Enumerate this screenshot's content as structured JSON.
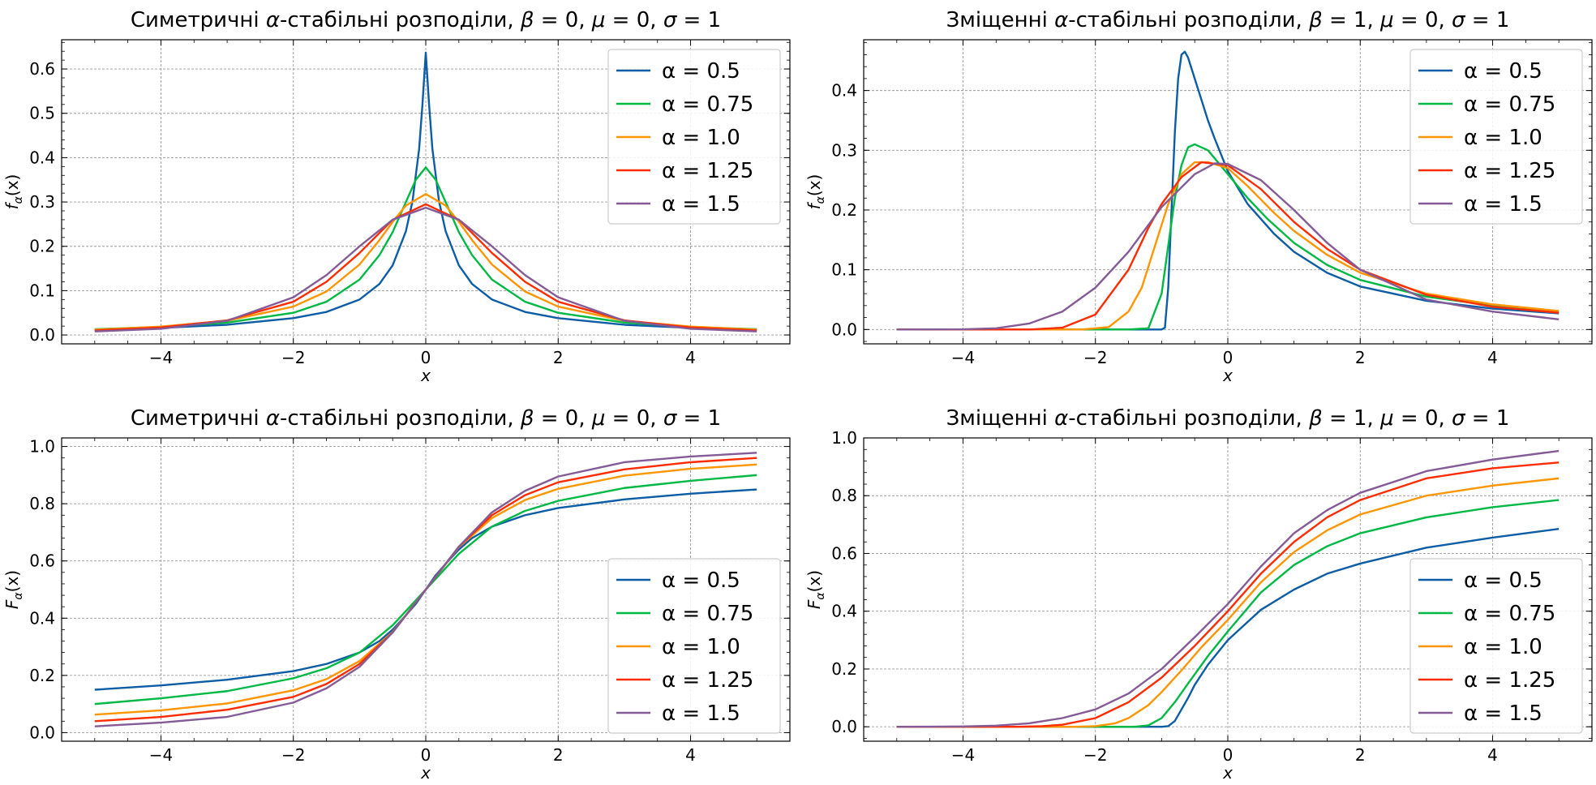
{
  "figure": {
    "background": "#ffffff",
    "grid_color": "#9a9a9a",
    "legend_border": "#cccccc"
  },
  "chart_data": [
    {
      "type": "line",
      "panel": "top-left",
      "title_parts": [
        "Симетричні ",
        "α",
        "-стабільні розподіли, ",
        "β",
        " = 0, ",
        "μ",
        " = 0, ",
        "σ",
        " = 1"
      ],
      "xlabel": "x",
      "ylabel": "f",
      "ylabel_sub": "α",
      "ylabel_arg": "(x)",
      "xlim": [
        -5.5,
        5.5
      ],
      "ylim": [
        -0.02,
        0.666
      ],
      "xticks": [
        -4,
        -2,
        0,
        2,
        4
      ],
      "yticks": [
        0.0,
        0.1,
        0.2,
        0.3,
        0.4,
        0.5,
        0.6
      ],
      "ytick_labels": [
        "0.0",
        "0.1",
        "0.2",
        "0.3",
        "0.4",
        "0.5",
        "0.6"
      ],
      "grid": true,
      "legend_position": "top-right",
      "series": [
        {
          "name": "α = 0.5",
          "color": "#0C5DA5",
          "x": [
            -5,
            -4,
            -3,
            -2,
            -1.5,
            -1,
            -0.7,
            -0.5,
            -0.3,
            -0.2,
            -0.1,
            -0.05,
            0,
            0.05,
            0.1,
            0.2,
            0.3,
            0.5,
            0.7,
            1,
            1.5,
            2,
            3,
            4,
            5
          ],
          "y": [
            0.012,
            0.016,
            0.023,
            0.038,
            0.052,
            0.08,
            0.115,
            0.157,
            0.234,
            0.302,
            0.42,
            0.52,
            0.637,
            0.52,
            0.42,
            0.302,
            0.234,
            0.157,
            0.115,
            0.08,
            0.052,
            0.038,
            0.023,
            0.016,
            0.012
          ]
        },
        {
          "name": "α = 0.75",
          "color": "#00B945",
          "x": [
            -5,
            -4,
            -3,
            -2,
            -1.5,
            -1,
            -0.7,
            -0.5,
            -0.3,
            -0.15,
            0,
            0.15,
            0.3,
            0.5,
            0.7,
            1,
            1.5,
            2,
            3,
            4,
            5
          ],
          "y": [
            0.013,
            0.018,
            0.028,
            0.05,
            0.075,
            0.125,
            0.18,
            0.232,
            0.3,
            0.35,
            0.378,
            0.35,
            0.3,
            0.232,
            0.18,
            0.125,
            0.075,
            0.05,
            0.028,
            0.018,
            0.013
          ]
        },
        {
          "name": "α = 1.0",
          "color": "#FF9500",
          "x": [
            -5,
            -4,
            -3,
            -2,
            -1.5,
            -1,
            -0.7,
            -0.5,
            -0.3,
            0,
            0.3,
            0.5,
            0.7,
            1,
            1.5,
            2,
            3,
            4,
            5
          ],
          "y": [
            0.012,
            0.019,
            0.032,
            0.064,
            0.098,
            0.159,
            0.214,
            0.255,
            0.292,
            0.318,
            0.292,
            0.255,
            0.214,
            0.159,
            0.098,
            0.064,
            0.032,
            0.019,
            0.012
          ]
        },
        {
          "name": "α = 1.25",
          "color": "#FF2C00",
          "x": [
            -5,
            -4,
            -3,
            -2,
            -1.5,
            -1,
            -0.5,
            0,
            0.5,
            1,
            1.5,
            2,
            3,
            4,
            5
          ],
          "y": [
            0.01,
            0.017,
            0.033,
            0.075,
            0.12,
            0.185,
            0.26,
            0.295,
            0.26,
            0.185,
            0.12,
            0.075,
            0.033,
            0.017,
            0.01
          ]
        },
        {
          "name": "α = 1.5",
          "color": "#845B97",
          "x": [
            -5,
            -4,
            -3,
            -2,
            -1.5,
            -1,
            -0.5,
            0,
            0.5,
            1,
            1.5,
            2,
            3,
            4,
            5
          ],
          "y": [
            0.008,
            0.014,
            0.032,
            0.085,
            0.135,
            0.2,
            0.26,
            0.287,
            0.26,
            0.2,
            0.135,
            0.085,
            0.032,
            0.014,
            0.008
          ]
        }
      ]
    },
    {
      "type": "line",
      "panel": "top-right",
      "title_parts": [
        "Зміщенні ",
        "α",
        "-стабільні розподіли, ",
        "β",
        " = 1, ",
        "μ",
        " = 0, ",
        "σ",
        " = 1"
      ],
      "xlabel": "x",
      "ylabel": "f",
      "ylabel_sub": "α",
      "ylabel_arg": "(x)",
      "xlim": [
        -5.5,
        5.5
      ],
      "ylim": [
        -0.024,
        0.485
      ],
      "xticks": [
        -4,
        -2,
        0,
        2,
        4
      ],
      "yticks": [
        0.0,
        0.1,
        0.2,
        0.3,
        0.4
      ],
      "ytick_labels": [
        "0.0",
        "0.1",
        "0.2",
        "0.3",
        "0.4"
      ],
      "grid": true,
      "legend_position": "top-right",
      "series": [
        {
          "name": "α = 0.5",
          "color": "#0C5DA5",
          "x": [
            -5,
            -1,
            -0.95,
            -0.9,
            -0.85,
            -0.8,
            -0.75,
            -0.7,
            -0.65,
            -0.6,
            -0.5,
            -0.4,
            -0.3,
            -0.2,
            0,
            0.3,
            0.7,
            1,
            1.5,
            2,
            3,
            4,
            5
          ],
          "y": [
            0,
            0,
            0.003,
            0.07,
            0.2,
            0.33,
            0.42,
            0.46,
            0.465,
            0.455,
            0.42,
            0.385,
            0.35,
            0.32,
            0.265,
            0.21,
            0.16,
            0.13,
            0.095,
            0.072,
            0.048,
            0.035,
            0.027
          ]
        },
        {
          "name": "α = 0.75",
          "color": "#00B945",
          "x": [
            -5,
            -1.5,
            -1.2,
            -1,
            -0.9,
            -0.8,
            -0.7,
            -0.6,
            -0.5,
            -0.3,
            0,
            0.3,
            0.6,
            1,
            1.5,
            2,
            3,
            4,
            5
          ],
          "y": [
            0,
            0,
            0.002,
            0.06,
            0.14,
            0.22,
            0.275,
            0.305,
            0.31,
            0.3,
            0.26,
            0.22,
            0.185,
            0.145,
            0.108,
            0.083,
            0.055,
            0.04,
            0.03
          ]
        },
        {
          "name": "α = 1.0",
          "color": "#FF9500",
          "x": [
            -5,
            -2.2,
            -1.8,
            -1.5,
            -1.3,
            -1.1,
            -0.9,
            -0.7,
            -0.5,
            -0.3,
            0,
            0.3,
            0.7,
            1,
            1.5,
            2,
            3,
            4,
            5
          ],
          "y": [
            0,
            0,
            0.004,
            0.03,
            0.07,
            0.14,
            0.21,
            0.26,
            0.28,
            0.28,
            0.27,
            0.24,
            0.195,
            0.165,
            0.125,
            0.095,
            0.06,
            0.042,
            0.031
          ]
        },
        {
          "name": "α = 1.25",
          "color": "#FF2C00",
          "x": [
            -5,
            -3,
            -2.5,
            -2,
            -1.5,
            -1.2,
            -1,
            -0.7,
            -0.4,
            0,
            0.5,
            1,
            1.5,
            2,
            3,
            4,
            5
          ],
          "y": [
            0,
            0,
            0.003,
            0.025,
            0.1,
            0.17,
            0.21,
            0.255,
            0.28,
            0.275,
            0.235,
            0.18,
            0.135,
            0.1,
            0.058,
            0.038,
            0.028
          ]
        },
        {
          "name": "α = 1.5",
          "color": "#845B97",
          "x": [
            -5,
            -4,
            -3.5,
            -3,
            -2.5,
            -2,
            -1.5,
            -1,
            -0.5,
            -0.2,
            0,
            0.5,
            1,
            1.5,
            2,
            3,
            4,
            5
          ],
          "y": [
            0,
            0.0003,
            0.002,
            0.01,
            0.03,
            0.07,
            0.13,
            0.205,
            0.26,
            0.278,
            0.277,
            0.25,
            0.2,
            0.145,
            0.1,
            0.05,
            0.03,
            0.017
          ]
        }
      ]
    },
    {
      "type": "line",
      "panel": "bottom-left",
      "title_parts": [
        "Симетричні ",
        "α",
        "-стабільні розподіли, ",
        "β",
        " = 0, ",
        "μ",
        " = 0, ",
        "σ",
        " = 1"
      ],
      "xlabel": "x",
      "ylabel": "F",
      "ylabel_sub": "α",
      "ylabel_arg": "(x)",
      "xlim": [
        -5.5,
        5.5
      ],
      "ylim": [
        -0.03,
        1.03
      ],
      "xticks": [
        -4,
        -2,
        0,
        2,
        4
      ],
      "yticks": [
        0.0,
        0.2,
        0.4,
        0.6,
        0.8,
        1.0
      ],
      "ytick_labels": [
        "0.0",
        "0.2",
        "0.4",
        "0.6",
        "0.8",
        "1.0"
      ],
      "grid": true,
      "legend_position": "lower-right",
      "series": [
        {
          "name": "α = 0.5",
          "color": "#0C5DA5",
          "x": [
            -5,
            -4,
            -3,
            -2,
            -1.5,
            -1,
            -0.7,
            -0.5,
            -0.3,
            -0.15,
            0,
            0.15,
            0.3,
            0.5,
            0.7,
            1,
            1.5,
            2,
            3,
            4,
            5
          ],
          "y": [
            0.15,
            0.165,
            0.185,
            0.215,
            0.24,
            0.28,
            0.32,
            0.36,
            0.41,
            0.45,
            0.5,
            0.55,
            0.59,
            0.64,
            0.68,
            0.72,
            0.76,
            0.785,
            0.815,
            0.835,
            0.85
          ]
        },
        {
          "name": "α = 0.75",
          "color": "#00B945",
          "x": [
            -5,
            -4,
            -3,
            -2,
            -1.5,
            -1,
            -0.5,
            0,
            0.5,
            1,
            1.5,
            2,
            3,
            4,
            5
          ],
          "y": [
            0.1,
            0.12,
            0.145,
            0.19,
            0.225,
            0.28,
            0.375,
            0.5,
            0.625,
            0.72,
            0.775,
            0.81,
            0.855,
            0.88,
            0.9
          ]
        },
        {
          "name": "α = 1.0",
          "color": "#FF9500",
          "x": [
            -5,
            -4,
            -3,
            -2,
            -1.5,
            -1,
            -0.5,
            0,
            0.5,
            1,
            1.5,
            2,
            3,
            4,
            5
          ],
          "y": [
            0.063,
            0.078,
            0.102,
            0.148,
            0.187,
            0.25,
            0.352,
            0.5,
            0.648,
            0.75,
            0.813,
            0.852,
            0.898,
            0.922,
            0.937
          ]
        },
        {
          "name": "α = 1.25",
          "color": "#FF2C00",
          "x": [
            -5,
            -4,
            -3,
            -2,
            -1.5,
            -1,
            -0.5,
            0,
            0.5,
            1,
            1.5,
            2,
            3,
            4,
            5
          ],
          "y": [
            0.04,
            0.055,
            0.08,
            0.125,
            0.17,
            0.24,
            0.35,
            0.5,
            0.65,
            0.76,
            0.83,
            0.875,
            0.92,
            0.945,
            0.96
          ]
        },
        {
          "name": "α = 1.5",
          "color": "#845B97",
          "x": [
            -5,
            -4,
            -3,
            -2,
            -1.5,
            -1,
            -0.5,
            0,
            0.5,
            1,
            1.5,
            2,
            3,
            4,
            5
          ],
          "y": [
            0.022,
            0.035,
            0.055,
            0.105,
            0.155,
            0.23,
            0.35,
            0.5,
            0.65,
            0.77,
            0.845,
            0.895,
            0.945,
            0.965,
            0.978
          ]
        }
      ]
    },
    {
      "type": "line",
      "panel": "bottom-right",
      "title_parts": [
        "Зміщенні ",
        "α",
        "-стабільні розподіли, ",
        "β",
        " = 1, ",
        "μ",
        " = 0, ",
        "σ",
        " = 1"
      ],
      "xlabel": "x",
      "ylabel": "F",
      "ylabel_sub": "α",
      "ylabel_arg": "(x)",
      "xlim": [
        -5.5,
        5.5
      ],
      "ylim": [
        -0.05,
        1.0
      ],
      "xticks": [
        -4,
        -2,
        0,
        2,
        4
      ],
      "yticks": [
        0.0,
        0.2,
        0.4,
        0.6,
        0.8,
        1.0
      ],
      "ytick_labels": [
        "0.0",
        "0.2",
        "0.4",
        "0.6",
        "0.8",
        "1.0"
      ],
      "grid": true,
      "legend_position": "lower-right",
      "series": [
        {
          "name": "α = 0.5",
          "color": "#0C5DA5",
          "x": [
            -5,
            -1,
            -0.9,
            -0.8,
            -0.7,
            -0.6,
            -0.5,
            -0.3,
            0,
            0.5,
            1,
            1.5,
            2,
            3,
            4,
            5
          ],
          "y": [
            0,
            0,
            0.002,
            0.02,
            0.06,
            0.1,
            0.145,
            0.215,
            0.3,
            0.405,
            0.475,
            0.53,
            0.565,
            0.62,
            0.655,
            0.685
          ]
        },
        {
          "name": "α = 0.75",
          "color": "#00B945",
          "x": [
            -5,
            -1.4,
            -1.2,
            -1,
            -0.8,
            -0.6,
            -0.3,
            0,
            0.5,
            1,
            1.5,
            2,
            3,
            4,
            5
          ],
          "y": [
            0,
            0,
            0.005,
            0.03,
            0.085,
            0.15,
            0.245,
            0.33,
            0.465,
            0.56,
            0.625,
            0.67,
            0.725,
            0.76,
            0.785
          ]
        },
        {
          "name": "α = 1.0",
          "color": "#FF9500",
          "x": [
            -5,
            -2.3,
            -2,
            -1.7,
            -1.5,
            -1.2,
            -1,
            -0.7,
            -0.4,
            0,
            0.5,
            1,
            1.5,
            2,
            3,
            4,
            5
          ],
          "y": [
            0,
            0,
            0.002,
            0.012,
            0.03,
            0.075,
            0.12,
            0.195,
            0.275,
            0.37,
            0.5,
            0.605,
            0.68,
            0.735,
            0.8,
            0.835,
            0.86
          ]
        },
        {
          "name": "α = 1.25",
          "color": "#FF2C00",
          "x": [
            -5,
            -3.2,
            -2.8,
            -2.5,
            -2,
            -1.5,
            -1,
            -0.5,
            0,
            0.5,
            1,
            1.5,
            2,
            3,
            4,
            5
          ],
          "y": [
            0,
            0,
            0.002,
            0.007,
            0.03,
            0.085,
            0.17,
            0.28,
            0.4,
            0.53,
            0.64,
            0.725,
            0.785,
            0.86,
            0.895,
            0.915
          ]
        },
        {
          "name": "α = 1.5",
          "color": "#845B97",
          "x": [
            -5,
            -4,
            -3.5,
            -3,
            -2.5,
            -2,
            -1.5,
            -1,
            -0.5,
            0,
            0.5,
            1,
            1.5,
            2,
            3,
            4,
            5
          ],
          "y": [
            0,
            0.001,
            0.004,
            0.012,
            0.03,
            0.06,
            0.115,
            0.2,
            0.31,
            0.425,
            0.555,
            0.67,
            0.75,
            0.81,
            0.885,
            0.925,
            0.955
          ]
        }
      ]
    }
  ]
}
